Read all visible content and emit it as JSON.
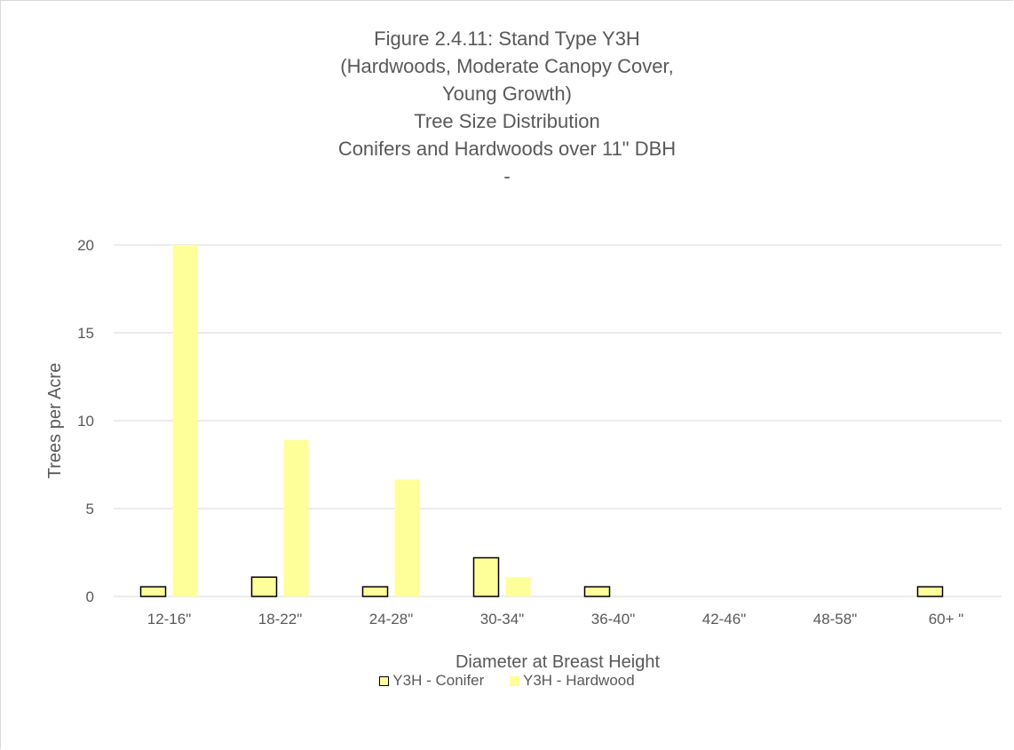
{
  "chart_data": {
    "type": "bar",
    "title_lines": [
      "Figure 2.4.11: Stand Type Y3H",
      "(Hardwoods, Moderate Canopy Cover,",
      "Young Growth)",
      "Tree Size Distribution",
      "Conifers and Hardwoods over 11\" DBH",
      "-"
    ],
    "xlabel": "Diameter at Breast Height",
    "ylabel": "Trees per Acre",
    "categories": [
      "12-16\"",
      "18-22\"",
      "24-28\"",
      "30-34\"",
      "36-40\"",
      "42-46\"",
      "48-58\"",
      "60+ \""
    ],
    "ylim": [
      0,
      20
    ],
    "yticks": [
      0,
      5,
      10,
      15,
      20
    ],
    "grid": true,
    "legend_position": "bottom",
    "series": [
      {
        "name": "Y3H - Conifer",
        "values": [
          0.55,
          1.1,
          0.55,
          2.2,
          0.55,
          0,
          0,
          0.55
        ],
        "color": "#ffff99",
        "stroke": "#000000"
      },
      {
        "name": "Y3H - Hardwood",
        "values": [
          20,
          8.9,
          6.65,
          1.1,
          0,
          0,
          0,
          0
        ],
        "color": "#ffff99",
        "stroke": "none"
      }
    ]
  }
}
